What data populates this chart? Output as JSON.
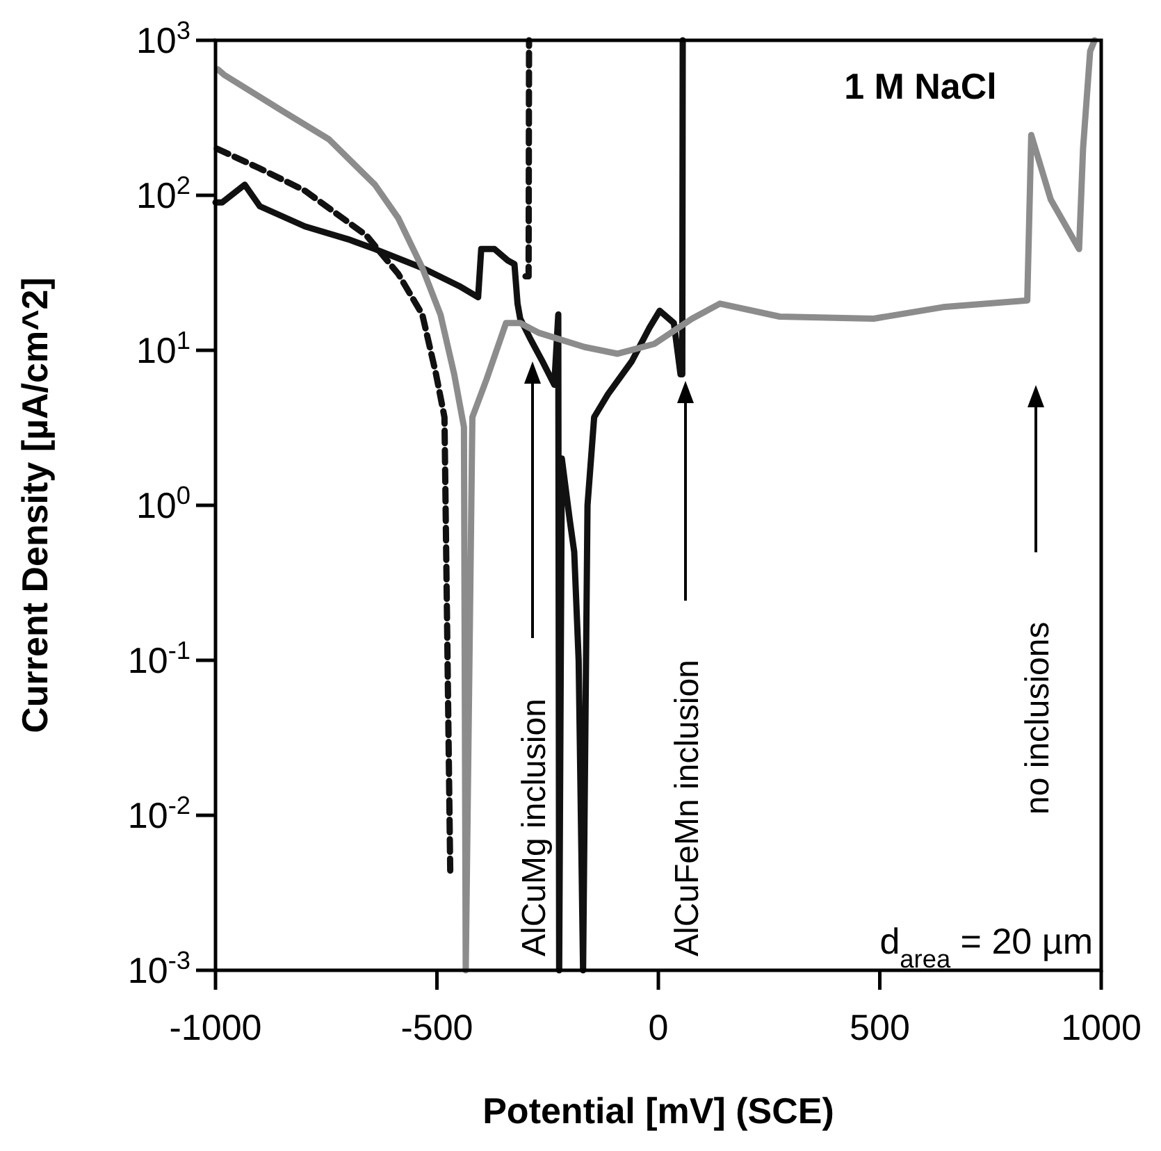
{
  "chart_data": {
    "type": "line",
    "xlabel": "Potential [mV] (SCE)",
    "ylabel": "Current Density [µA/cm^2]",
    "log": "y",
    "grid": false,
    "xlim": [
      -1000,
      1000
    ],
    "xticks": [
      -1000,
      -500,
      0,
      500,
      1000
    ],
    "ylim": [
      0.001,
      1000
    ],
    "yticks": [
      {
        "value": 0.001,
        "label": "10$^{-3}$"
      },
      {
        "value": 0.01,
        "label": "10$^{-2}$"
      },
      {
        "value": 0.1,
        "label": "10$^{-1}$"
      },
      {
        "value": 1,
        "label": "10$^{0}$"
      },
      {
        "value": 10,
        "label": "10$^{1}$"
      },
      {
        "value": 100,
        "label": "10$^{2}$"
      },
      {
        "value": 1000,
        "label": "10$^{3}$"
      }
    ],
    "series": [
      {
        "color": "#111111",
        "line_style": "solid",
        "x": [
          -1000,
          -985,
          -934,
          -900,
          -798,
          -700,
          -640,
          -533,
          -450,
          -407,
          -400,
          -370,
          -340,
          -325,
          -318,
          -312,
          -290,
          -262,
          -235,
          -226,
          -224,
          -218,
          -200,
          -190,
          -180,
          -170,
          -160,
          -145,
          -114,
          -60,
          -20,
          3,
          35,
          50,
          54,
          55
        ],
        "values": [
          90,
          90,
          117,
          85,
          63,
          52,
          45,
          34,
          26,
          22,
          45,
          45,
          38,
          36,
          20,
          16,
          12,
          8.5,
          6,
          17,
          0.001,
          2,
          0.8,
          0.5,
          0.1,
          0.001,
          1,
          3.7,
          5.2,
          8.5,
          14,
          18,
          15,
          7,
          7,
          1000
        ]
      },
      {
        "color": "#111111",
        "line_style": "dashed",
        "x": [
          -997,
          -902,
          -798,
          -659,
          -587,
          -533,
          -502,
          -483,
          -470,
          -400,
          -300,
          -293,
          -292
        ],
        "values": [
          200,
          150,
          107,
          55,
          31,
          17,
          7,
          3.7,
          0.0044,
          null,
          30,
          30,
          1000
        ]
      },
      {
        "color": "#8c8c8c",
        "line_style": "solid",
        "x": [
          -995,
          -981,
          -849,
          -744,
          -640,
          -587,
          -533,
          -492,
          -461,
          -439,
          -435,
          -420,
          -388,
          -344,
          -312,
          -271,
          -167,
          -92,
          -9,
          76,
          139,
          274,
          486,
          643,
          833,
          842,
          886,
          950,
          959,
          975,
          985
        ],
        "values": [
          650,
          600,
          350,
          230,
          117,
          71,
          34,
          17,
          7,
          3.2,
          0.001,
          3.7,
          6.5,
          15,
          15,
          13,
          10.5,
          9.5,
          11,
          16,
          20,
          16.5,
          16,
          19,
          21,
          245,
          94,
          45,
          200,
          850,
          1000
        ]
      }
    ],
    "annotations": [
      "1 M NaCl",
      "d$_{area}$ = 20 µm",
      "AlCuMg inclusion",
      "AlCuFeMn inclusion",
      "no inclusions"
    ]
  }
}
